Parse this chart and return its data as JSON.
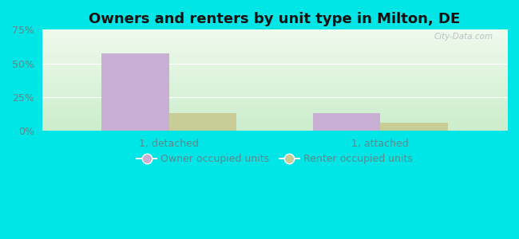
{
  "title": "Owners and renters by unit type in Milton, DE",
  "categories": [
    "1, detached",
    "1, attached"
  ],
  "owner_values": [
    57.5,
    13.0
  ],
  "renter_values": [
    13.0,
    6.0
  ],
  "owner_color": "#c9afd4",
  "renter_color": "#c8cc96",
  "ylim": [
    0,
    75
  ],
  "yticks": [
    0,
    25,
    50,
    75
  ],
  "yticklabels": [
    "0%",
    "25%",
    "50%",
    "75%"
  ],
  "bar_width": 0.32,
  "outer_color": "#00e5e5",
  "watermark": "City-Data.com",
  "legend_owner": "Owner occupied units",
  "legend_renter": "Renter occupied units",
  "title_fontsize": 13,
  "axis_fontsize": 9,
  "legend_fontsize": 9,
  "tick_color": "#5a8a8a",
  "grid_color": "#ffffff",
  "bg_colors": [
    "#f0faf0",
    "#d8f0d0",
    "#c0e8c8",
    "#e8f8e8"
  ]
}
